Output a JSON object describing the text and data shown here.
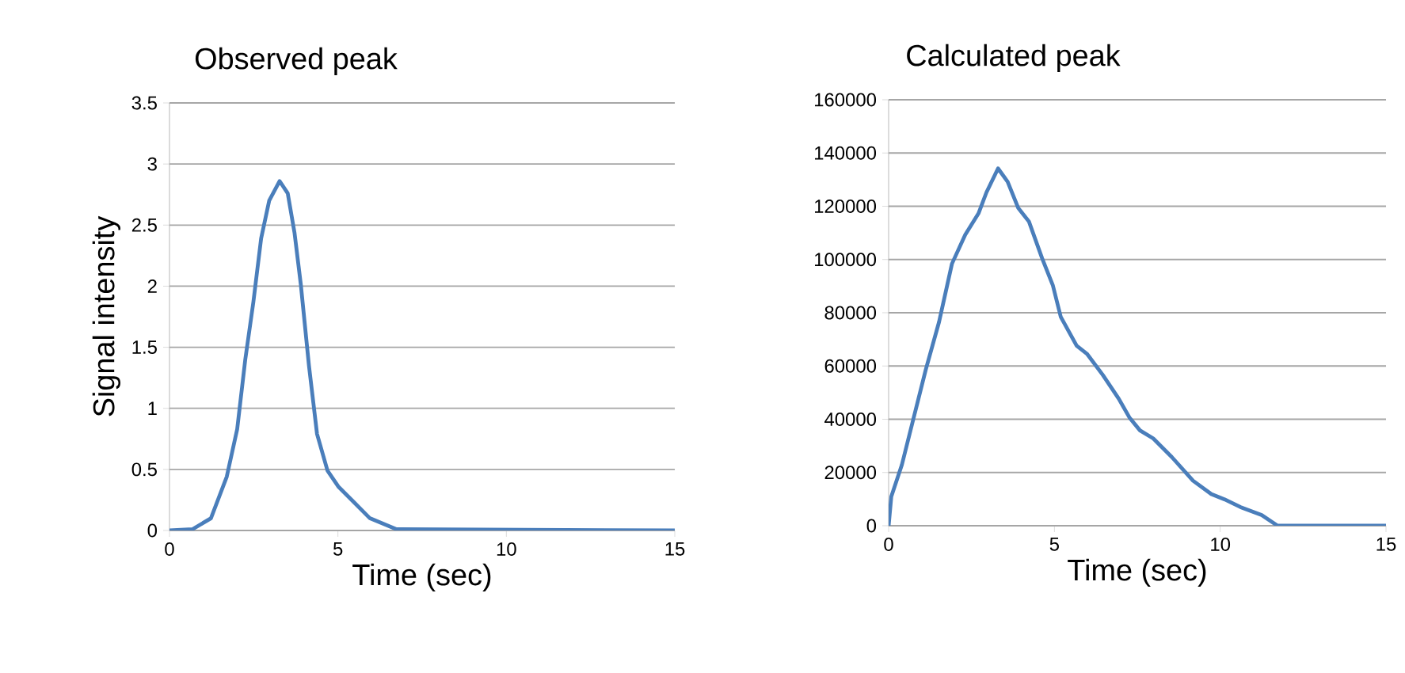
{
  "chart_data": [
    {
      "type": "line",
      "title": "Observed peak",
      "xlabel": "Time (sec)",
      "ylabel": "Signal intensity",
      "xlim": [
        0,
        15
      ],
      "xticks": [
        0,
        5,
        10,
        15
      ],
      "ylim": [
        0,
        3.5
      ],
      "yticks": [
        0,
        0.5,
        1,
        1.5,
        2,
        2.5,
        3,
        3.5
      ],
      "grid": "y",
      "series": [
        {
          "color": "#4a7ebb",
          "x": [
            0,
            0.68,
            1.23,
            1.7,
            2.01,
            2.25,
            2.49,
            2.72,
            2.96,
            3.27,
            3.51,
            3.71,
            3.9,
            4.14,
            4.38,
            4.69,
            5.01,
            5.48,
            5.95,
            6.74,
            15
          ],
          "values": [
            0,
            0.01,
            0.1,
            0.44,
            0.83,
            1.4,
            1.87,
            2.39,
            2.7,
            2.86,
            2.76,
            2.44,
            2.01,
            1.35,
            0.79,
            0.49,
            0.36,
            0.23,
            0.1,
            0.01,
            0
          ]
        }
      ]
    },
    {
      "type": "line",
      "title": "Calculated peak",
      "xlabel": "Time (sec)",
      "xlim": [
        0,
        15
      ],
      "xticks": [
        0,
        5,
        10,
        15
      ],
      "ylim": [
        0,
        160000
      ],
      "yticks": [
        0,
        20000,
        40000,
        60000,
        80000,
        100000,
        120000,
        140000,
        160000
      ],
      "grid": "y",
      "series": [
        {
          "color": "#4a7ebb",
          "x": [
            0,
            0.08,
            0.4,
            0.72,
            1.12,
            1.52,
            1.91,
            2.31,
            2.71,
            2.95,
            3.3,
            3.59,
            3.91,
            4.23,
            4.63,
            4.95,
            5.19,
            5.67,
            5.98,
            6.46,
            6.94,
            7.26,
            7.58,
            7.98,
            8.54,
            9.18,
            9.73,
            10.13,
            10.61,
            11.25,
            11.73,
            15
          ],
          "values": [
            0,
            10900,
            22900,
            38800,
            58600,
            76500,
            98400,
            109300,
            117300,
            125200,
            134200,
            129200,
            119300,
            114300,
            100400,
            90400,
            78500,
            67600,
            64600,
            56600,
            47700,
            40700,
            35800,
            32800,
            25800,
            16900,
            11900,
            9900,
            7000,
            4000,
            0,
            0
          ]
        }
      ]
    }
  ]
}
